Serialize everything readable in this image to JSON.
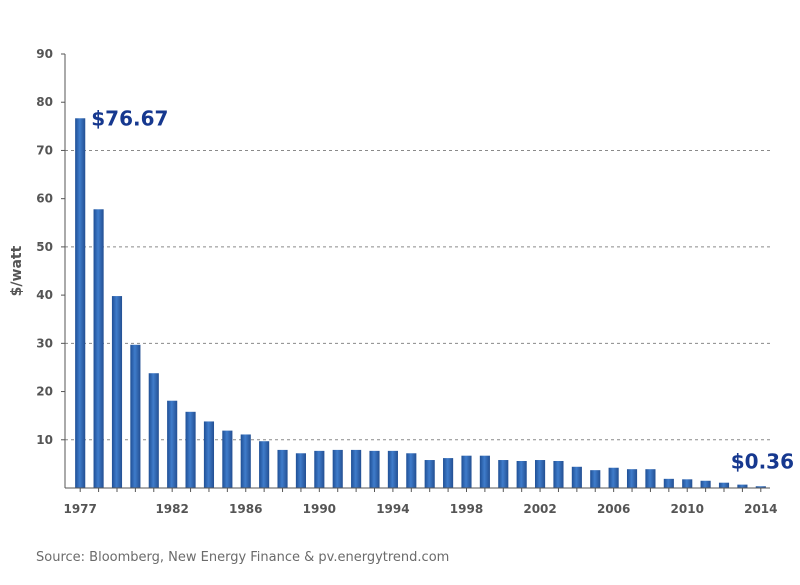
{
  "chart_data": {
    "type": "bar",
    "title": "",
    "xlabel": "",
    "ylabel": "$/watt",
    "ylim": [
      0,
      90
    ],
    "yticks": [
      10,
      20,
      30,
      40,
      50,
      60,
      70,
      80,
      90
    ],
    "grid": "horizontal dashed at 10, 30, 50, 70",
    "bar_color": "#2e67b3",
    "callout_color": "#16388f",
    "categories": [
      "1977",
      "1978",
      "1979",
      "1980",
      "1981",
      "1982",
      "1983",
      "1984",
      "1985",
      "1986",
      "1987",
      "1988",
      "1989",
      "1990",
      "1991",
      "1992",
      "1993",
      "1994",
      "1995",
      "1996",
      "1997",
      "1998",
      "1999",
      "2000",
      "2001",
      "2002",
      "2003",
      "2004",
      "2005",
      "2006",
      "2007",
      "2008",
      "2009",
      "2010",
      "2011",
      "2012",
      "2013",
      "2014"
    ],
    "values": [
      76.67,
      57.8,
      39.8,
      29.7,
      23.8,
      18.1,
      15.8,
      13.8,
      11.9,
      11.1,
      9.7,
      7.9,
      7.2,
      7.7,
      7.9,
      7.9,
      7.7,
      7.7,
      7.2,
      5.8,
      6.2,
      6.7,
      6.7,
      5.8,
      5.6,
      5.8,
      5.6,
      4.4,
      3.7,
      4.2,
      3.9,
      3.9,
      1.9,
      1.8,
      1.5,
      1.1,
      0.7,
      0.36
    ],
    "xtick_labels": [
      "1977",
      "1982",
      "1986",
      "1990",
      "1994",
      "1998",
      "2002",
      "2006",
      "2010",
      "2014"
    ],
    "annotations": [
      {
        "category": "1977",
        "text": "$76.67"
      },
      {
        "category": "2014",
        "text": "$0.36"
      }
    ]
  },
  "source_text": "Source: Bloomberg, New Energy Finance & pv.energytrend.com"
}
